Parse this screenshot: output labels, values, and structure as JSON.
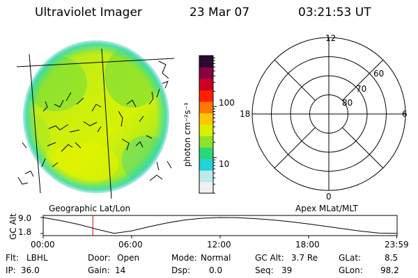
{
  "header": {
    "instrument": "Ultraviolet Imager",
    "date": "23 Mar 07",
    "time": "03:21:53 UT"
  },
  "colorbar": {
    "label": "photon cm⁻²s⁻¹",
    "ticks": [
      "100",
      "10"
    ],
    "tick_values": [
      100,
      10
    ],
    "range": [
      2,
      1000
    ],
    "scale": "log",
    "colors": [
      "#f0f0f0",
      "#bfe8ef",
      "#22d4d4",
      "#28d97a",
      "#8de22a",
      "#d8f000",
      "#ffc800",
      "#ff7800",
      "#ff2000",
      "#cc0020",
      "#8a0040",
      "#2a0a30"
    ]
  },
  "image_panel": {
    "caption": "Geographic Lat/Lon"
  },
  "polar_panel": {
    "caption": "Apex MLat/MLT",
    "mlt_labels": [
      "12",
      "18",
      "6",
      "0"
    ],
    "lat_labels": [
      "60",
      "70",
      "80"
    ],
    "lat_values": [
      60,
      70,
      80
    ]
  },
  "altitude_plot": {
    "ylabel": "GC Alt",
    "yticks": [
      "9.0",
      "1.8"
    ],
    "ytick_values": [
      9.0,
      1.8
    ],
    "xticks": [
      "00:00",
      "06:00",
      "12:00",
      "18:00",
      "23:59"
    ],
    "current_time_marker": "03:21:53",
    "orbit_points_hours": [
      0,
      1.2,
      2.4,
      3.6,
      4.8,
      6,
      7.2,
      8.4,
      9.6,
      10.8,
      12,
      13.2,
      14.4,
      15.6,
      16.8,
      18,
      19.2,
      20.4,
      21.6,
      22.8,
      23.98
    ],
    "orbit_points_re": [
      9.0,
      7.6,
      5.9,
      3.8,
      1.9,
      3.0,
      4.9,
      6.6,
      7.9,
      8.7,
      9.0,
      8.9,
      8.5,
      7.9,
      7.1,
      6.1,
      5.0,
      3.9,
      2.8,
      2.0,
      1.9
    ]
  },
  "status": {
    "flt_label": "Flt:",
    "flt_value": "LBHL",
    "ip_label": "IP:",
    "ip_value": "36.0",
    "door_label": "Door:",
    "door_value": "Open",
    "gain_label": "Gain:",
    "gain_value": "14",
    "mode_label": "Mode:",
    "mode_value": "Normal",
    "dsp_label": "Dsp:",
    "dsp_value": "0.0",
    "gcalt_label": "GC Alt:",
    "gcalt_value": "3.7 Re",
    "seq_label": "Seq:",
    "seq_value": "39",
    "glat_label": "GLat:",
    "glat_value": "8.5",
    "glon_label": "GLon:",
    "glon_value": "98.2"
  }
}
